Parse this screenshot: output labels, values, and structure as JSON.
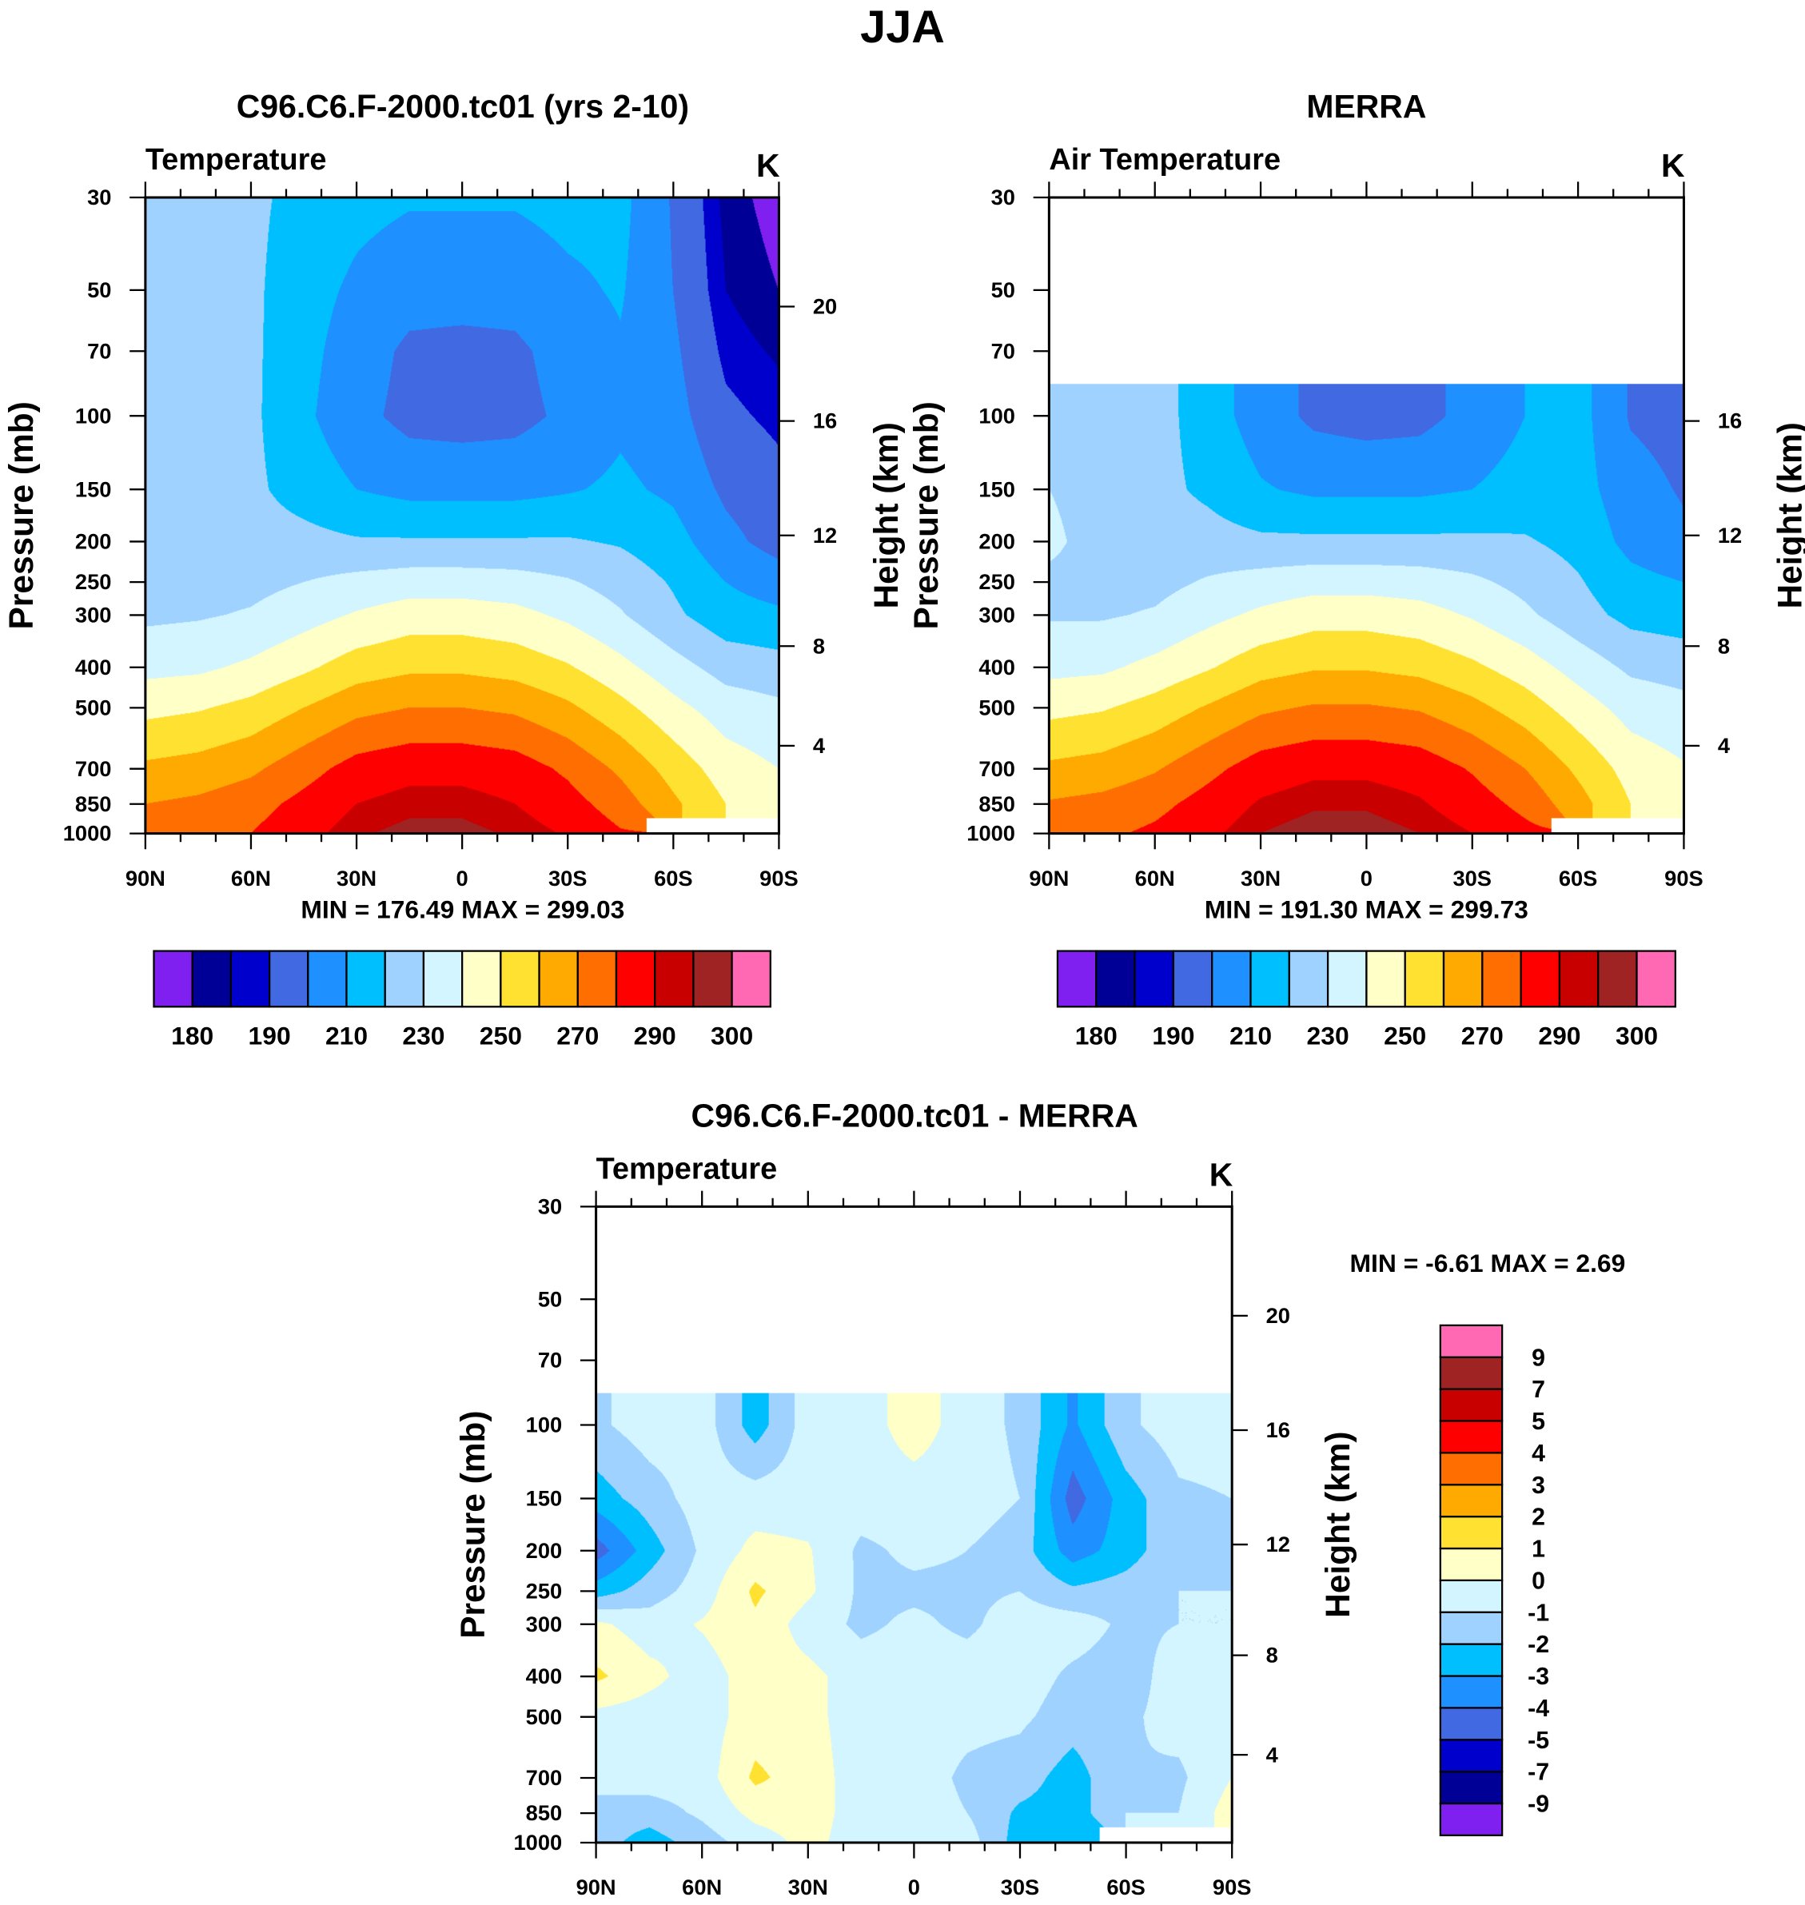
{
  "main_title": "JJA",
  "colors": [
    "#8020F0",
    "#000096",
    "#0000CD",
    "#4169E1",
    "#1E90FF",
    "#00BFFF",
    "#A0D2FF",
    "#D2F5FF",
    "#FFFFC8",
    "#FFE132",
    "#FFAA00",
    "#FF6E00",
    "#FF0000",
    "#C80000",
    "#A02323",
    "#FF69B4"
  ],
  "chart_data": [
    {
      "type": "heatmap",
      "title": "C96.C6.F-2000.tc01 (yrs 2-10)",
      "left_label": "Temperature",
      "units": "K",
      "ylabel": "Pressure (mb)",
      "ylabel_right": "Height (km)",
      "minmax": "MIN = 176.49  MAX = 299.03",
      "x_ticks": [
        {
          "v": 90,
          "label": "90N"
        },
        {
          "v": 60,
          "label": "60N"
        },
        {
          "v": 30,
          "label": "30N"
        },
        {
          "v": 0,
          "label": "0"
        },
        {
          "v": -30,
          "label": "30S"
        },
        {
          "v": -60,
          "label": "60S"
        },
        {
          "v": -90,
          "label": "90S"
        }
      ],
      "y_ticks": [
        "30",
        "50",
        "70",
        "100",
        "150",
        "200",
        "250",
        "300",
        "400",
        "500",
        "700",
        "850",
        "1000"
      ],
      "y_right_ticks": [
        "20",
        "16",
        "12",
        "8",
        "4"
      ],
      "ylim": [
        1000,
        30
      ],
      "levels": [
        180,
        185,
        190,
        200,
        210,
        220,
        230,
        240,
        250,
        260,
        270,
        280,
        290,
        295,
        300
      ],
      "level_labels": [
        "180",
        "190",
        "210",
        "230",
        "250",
        "270",
        "290",
        "300"
      ],
      "lat": [
        90,
        75,
        60,
        45,
        30,
        15,
        0,
        -15,
        -30,
        -45,
        -60,
        -75,
        -90
      ],
      "pressure": [
        1000,
        850,
        700,
        500,
        400,
        300,
        250,
        200,
        150,
        100,
        70,
        50,
        30
      ],
      "values": [
        [
          274,
          276,
          280,
          287,
          294,
          297,
          297,
          294,
          289,
          281,
          null,
          null,
          null
        ],
        [
          270,
          272,
          276,
          283,
          290,
          293,
          293,
          290,
          284,
          275,
          262,
          250,
          245
        ],
        [
          262,
          264,
          268,
          276,
          284,
          287,
          287,
          285,
          278,
          268,
          256,
          245,
          240
        ],
        [
          247,
          249,
          253,
          260,
          267,
          270,
          270,
          268,
          262,
          253,
          243,
          235,
          232
        ],
        [
          237,
          238,
          242,
          248,
          255,
          258,
          258,
          256,
          251,
          243,
          234,
          226,
          224
        ],
        [
          228,
          229,
          231,
          236,
          241,
          245,
          245,
          243,
          238,
          231,
          222,
          214,
          212
        ],
        [
          226,
          226,
          227,
          230,
          233,
          235,
          235,
          234,
          231,
          226,
          219,
          210,
          205
        ],
        [
          225,
          225,
          224,
          223,
          221,
          221,
          221,
          221,
          221,
          219,
          214,
          203,
          196
        ],
        [
          226,
          225,
          222,
          216,
          210,
          207,
          207,
          207,
          209,
          212,
          208,
          198,
          193
        ],
        [
          227,
          226,
          222,
          212,
          203,
          197,
          196,
          197,
          202,
          208,
          204,
          192,
          188
        ],
        [
          226,
          226,
          222,
          213,
          205,
          198,
          197,
          198,
          204,
          209,
          202,
          188,
          184
        ],
        [
          225,
          225,
          222,
          214,
          208,
          204,
          204,
          204,
          208,
          211,
          200,
          185,
          180
        ],
        [
          224,
          224,
          222,
          217,
          213,
          211,
          211,
          211,
          213,
          213,
          199,
          183,
          177
        ]
      ]
    },
    {
      "type": "heatmap",
      "title": "MERRA",
      "left_label": "Air Temperature",
      "units": "K",
      "ylabel": "Pressure (mb)",
      "ylabel_right": "Height (km)",
      "minmax": "MIN = 191.30  MAX = 299.73",
      "x_ticks": [
        {
          "v": 90,
          "label": "90N"
        },
        {
          "v": 60,
          "label": "60N"
        },
        {
          "v": 30,
          "label": "30N"
        },
        {
          "v": 0,
          "label": "0"
        },
        {
          "v": -30,
          "label": "30S"
        },
        {
          "v": -60,
          "label": "60S"
        },
        {
          "v": -90,
          "label": "90S"
        }
      ],
      "y_ticks": [
        "30",
        "50",
        "70",
        "100",
        "150",
        "200",
        "250",
        "300",
        "400",
        "500",
        "700",
        "850",
        "1000"
      ],
      "y_right_ticks": [
        "16",
        "12",
        "8",
        "4"
      ],
      "ylim": [
        1000,
        30
      ],
      "levels": [
        180,
        185,
        190,
        200,
        210,
        220,
        230,
        240,
        250,
        260,
        270,
        280,
        290,
        295,
        300
      ],
      "level_labels": [
        "180",
        "190",
        "210",
        "230",
        "250",
        "270",
        "290",
        "300"
      ],
      "lat": [
        90,
        75,
        60,
        45,
        30,
        15,
        0,
        -15,
        -30,
        -45,
        -60,
        -75,
        -90
      ],
      "pressure": [
        1000,
        850,
        700,
        500,
        400,
        300,
        250,
        200,
        150,
        100,
        70,
        50,
        30
      ],
      "values": [
        [
          276,
          278,
          282,
          288,
          295,
          298,
          298,
          295,
          290,
          283,
          null,
          null,
          null
        ],
        [
          271,
          273,
          277,
          284,
          291,
          294,
          294,
          291,
          285,
          277,
          264,
          250,
          245
        ],
        [
          262,
          264,
          269,
          277,
          285,
          288,
          288,
          286,
          279,
          270,
          258,
          246,
          241
        ],
        [
          247,
          249,
          254,
          261,
          268,
          271,
          271,
          269,
          263,
          255,
          245,
          236,
          233
        ],
        [
          237,
          238,
          243,
          249,
          256,
          259,
          259,
          257,
          252,
          245,
          236,
          228,
          226
        ],
        [
          229,
          229,
          231,
          237,
          242,
          246,
          246,
          244,
          239,
          232,
          224,
          217,
          215
        ],
        [
          228,
          227,
          227,
          231,
          234,
          236,
          236,
          235,
          232,
          227,
          221,
          213,
          210
        ],
        [
          232,
          226,
          225,
          224,
          222,
          222,
          222,
          222,
          222,
          221,
          217,
          207,
          202
        ],
        [
          230,
          226,
          223,
          218,
          211,
          208,
          208,
          208,
          210,
          214,
          214,
          204,
          199
        ],
        [
          226,
          226,
          224,
          215,
          205,
          198,
          196,
          197,
          203,
          210,
          214,
          199,
          196
        ],
        [
          null,
          null,
          null,
          null,
          null,
          null,
          null,
          null,
          null,
          null,
          null,
          null,
          null
        ],
        [
          null,
          null,
          null,
          null,
          null,
          null,
          null,
          null,
          null,
          null,
          null,
          null,
          null
        ],
        [
          null,
          null,
          null,
          null,
          null,
          null,
          null,
          null,
          null,
          null,
          null,
          null,
          null
        ]
      ]
    },
    {
      "type": "heatmap",
      "title": "C96.C6.F-2000.tc01 - MERRA",
      "left_label": "Temperature",
      "units": "K",
      "ylabel": "Pressure (mb)",
      "ylabel_right": "Height (km)",
      "minmax": "MIN =  -6.61   MAX =    2.69",
      "x_ticks": [
        {
          "v": 90,
          "label": "90N"
        },
        {
          "v": 60,
          "label": "60N"
        },
        {
          "v": 30,
          "label": "30N"
        },
        {
          "v": 0,
          "label": "0"
        },
        {
          "v": -30,
          "label": "30S"
        },
        {
          "v": -60,
          "label": "60S"
        },
        {
          "v": -90,
          "label": "90S"
        }
      ],
      "y_ticks": [
        "30",
        "50",
        "70",
        "100",
        "150",
        "200",
        "250",
        "300",
        "400",
        "500",
        "700",
        "850",
        "1000"
      ],
      "y_right_ticks": [
        "20",
        "16",
        "12",
        "8",
        "4"
      ],
      "ylim": [
        1000,
        30
      ],
      "levels": [
        -9,
        -7,
        -5,
        -4,
        -3,
        -2,
        -1,
        0,
        1,
        2,
        3,
        4,
        5,
        7,
        9
      ],
      "level_labels": [
        "-9",
        "-7",
        "-5",
        "-4",
        "-3",
        "-2",
        "-1",
        "0",
        "1",
        "2",
        "3",
        "4",
        "5",
        "7",
        "9"
      ],
      "lat": [
        90,
        75,
        60,
        45,
        30,
        15,
        0,
        -15,
        -30,
        -45,
        -60,
        -75,
        -90
      ],
      "pressure": [
        1000,
        850,
        700,
        500,
        400,
        300,
        250,
        200,
        150,
        100,
        70,
        50,
        30
      ],
      "values": [
        [
          -1.5,
          -2.5,
          -1.5,
          -0.5,
          0.3,
          -0.5,
          -0.5,
          -0.5,
          -2.5,
          -3,
          null,
          null,
          null
        ],
        [
          -1.5,
          -1.5,
          -0.8,
          0.3,
          0.5,
          -0.5,
          -0.5,
          -1,
          -2.2,
          -2.5,
          -1,
          -1,
          0.5
        ],
        [
          -0.5,
          -0.5,
          -0.5,
          1.2,
          0.5,
          -0.5,
          -0.5,
          -1.2,
          -1.5,
          -2.5,
          -1,
          -1.2,
          0
        ],
        [
          -0.3,
          -0.5,
          -0.5,
          0.5,
          0.3,
          -0.5,
          -0.5,
          -0.7,
          -0.8,
          -1.5,
          -1.2,
          -0.6,
          -0.5
        ],
        [
          1.2,
          0.3,
          -0.5,
          0.5,
          0.3,
          -0.5,
          -0.5,
          -0.5,
          -0.5,
          -1.2,
          -1.5,
          -0.5,
          -0.5
        ],
        [
          0.2,
          -0.5,
          0.1,
          0.8,
          -0.5,
          -1.2,
          -0.8,
          -1.2,
          -0.5,
          -0.5,
          -1.2,
          -1,
          -1
        ],
        [
          -2.5,
          -1.5,
          -0.5,
          1.2,
          0.2,
          -1.2,
          -1.2,
          -1.2,
          -1,
          -1.8,
          -1.5,
          -1,
          -1
        ],
        [
          -4.5,
          -2.5,
          -0.8,
          0.3,
          0.1,
          -1.2,
          -0.8,
          -1,
          -1.5,
          -3.5,
          -2.5,
          -1.2,
          -1
        ],
        [
          -2.5,
          -1.5,
          -0.5,
          -0.5,
          -0.5,
          -0.5,
          -0.5,
          -0.5,
          -1,
          -4.5,
          -2.5,
          -1.2,
          -1
        ],
        [
          -1.2,
          -0.5,
          -0.5,
          -2.5,
          -0.5,
          -0.5,
          0.5,
          -0.5,
          -1.2,
          -3.2,
          -1.2,
          -0.5,
          -0.5
        ],
        [
          null,
          null,
          null,
          null,
          null,
          null,
          null,
          null,
          null,
          null,
          null,
          null,
          null
        ],
        [
          null,
          null,
          null,
          null,
          null,
          null,
          null,
          null,
          null,
          null,
          null,
          null,
          null
        ],
        [
          null,
          null,
          null,
          null,
          null,
          null,
          null,
          null,
          null,
          null,
          null,
          null,
          null
        ]
      ]
    }
  ]
}
